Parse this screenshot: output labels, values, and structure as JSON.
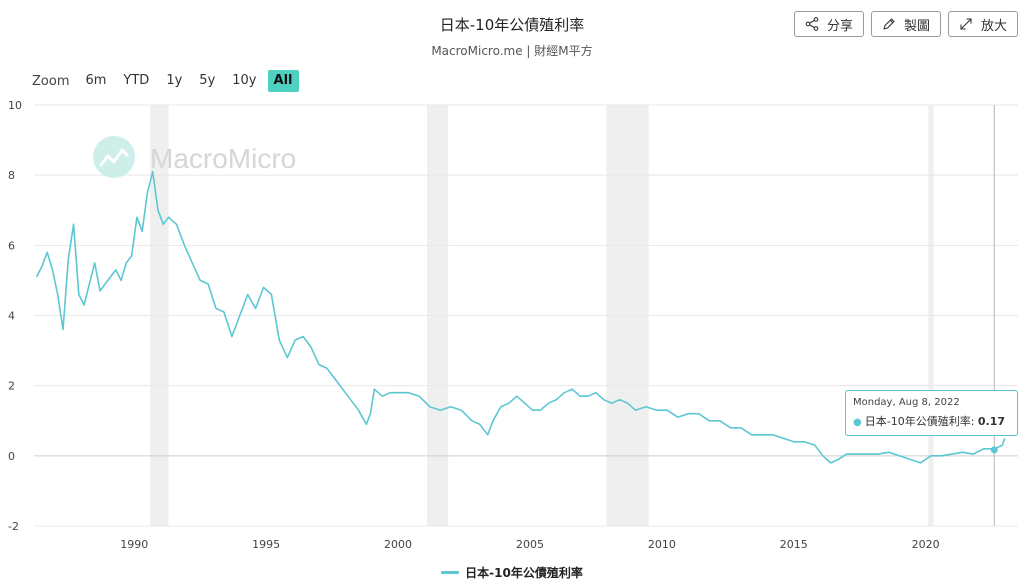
{
  "header": {
    "title": "日本-10年公債殖利率",
    "subtitle": "MacroMicro.me | 財經M平方"
  },
  "buttons": {
    "share": "分享",
    "draw": "製圖",
    "expand": "放大"
  },
  "zoom": {
    "label": "Zoom",
    "options": [
      "6m",
      "YTD",
      "1y",
      "5y",
      "10y",
      "All"
    ],
    "active": "All"
  },
  "watermark": "MacroMicro",
  "tooltip": {
    "date": "Monday, Aug 8, 2022",
    "series": "日本-10年公債殖利率",
    "value": "0.17"
  },
  "colors": {
    "series": "#5cc7d2",
    "active_zoom": "#4fd1c2",
    "recession_band": "#efefef"
  },
  "chart_data": {
    "type": "line",
    "title": "日本-10年公債殖利率",
    "xlabel": "",
    "ylabel": "",
    "xlim": [
      1986.2,
      2023.5
    ],
    "ylim": [
      -2,
      10
    ],
    "yticks": [
      -2,
      0,
      2,
      4,
      6,
      8,
      10
    ],
    "xticks": [
      1990,
      1995,
      2000,
      2005,
      2010,
      2015,
      2020
    ],
    "grid": true,
    "legend": "bottom",
    "recession_bands": [
      [
        1990.6,
        1991.3
      ],
      [
        2001.1,
        2001.9
      ],
      [
        2007.9,
        2009.5
      ],
      [
        2020.1,
        2020.3
      ]
    ],
    "crosshair_x": 2022.6,
    "series": [
      {
        "name": "日本-10年公債殖利率",
        "x": [
          1986.3,
          1986.5,
          1986.7,
          1986.9,
          1987.1,
          1987.3,
          1987.5,
          1987.7,
          1987.9,
          1988.1,
          1988.3,
          1988.5,
          1988.7,
          1988.9,
          1989.1,
          1989.3,
          1989.5,
          1989.7,
          1989.9,
          1990.1,
          1990.3,
          1990.5,
          1990.7,
          1990.9,
          1991.1,
          1991.3,
          1991.6,
          1991.9,
          1992.2,
          1992.5,
          1992.8,
          1993.1,
          1993.4,
          1993.7,
          1994.0,
          1994.3,
          1994.6,
          1994.9,
          1995.2,
          1995.5,
          1995.8,
          1996.1,
          1996.4,
          1996.7,
          1997.0,
          1997.3,
          1997.6,
          1997.9,
          1998.2,
          1998.5,
          1998.8,
          1998.95,
          1999.1,
          1999.4,
          1999.7,
          2000.0,
          2000.4,
          2000.8,
          2001.2,
          2001.6,
          2002.0,
          2002.4,
          2002.8,
          2003.1,
          2003.4,
          2003.6,
          2003.9,
          2004.2,
          2004.5,
          2004.8,
          2005.1,
          2005.4,
          2005.7,
          2006.0,
          2006.3,
          2006.6,
          2006.9,
          2007.2,
          2007.5,
          2007.8,
          2008.1,
          2008.4,
          2008.7,
          2009.0,
          2009.4,
          2009.8,
          2010.2,
          2010.6,
          2011.0,
          2011.4,
          2011.8,
          2012.2,
          2012.6,
          2013.0,
          2013.4,
          2013.8,
          2014.2,
          2014.6,
          2015.0,
          2015.4,
          2015.8,
          2016.1,
          2016.4,
          2016.7,
          2017.0,
          2017.4,
          2017.8,
          2018.2,
          2018.6,
          2019.0,
          2019.4,
          2019.8,
          2020.2,
          2020.6,
          2021.0,
          2021.4,
          2021.8,
          2022.2,
          2022.6,
          2022.9,
          2023.0
        ],
        "y": [
          5.1,
          5.4,
          5.8,
          5.3,
          4.6,
          3.6,
          5.6,
          6.6,
          4.6,
          4.3,
          4.9,
          5.5,
          4.7,
          4.9,
          5.1,
          5.3,
          5.0,
          5.5,
          5.7,
          6.8,
          6.4,
          7.5,
          8.1,
          7.0,
          6.6,
          6.8,
          6.6,
          6.0,
          5.5,
          5.0,
          4.9,
          4.2,
          4.1,
          3.4,
          4.0,
          4.6,
          4.2,
          4.8,
          4.6,
          3.3,
          2.8,
          3.3,
          3.4,
          3.1,
          2.6,
          2.5,
          2.2,
          1.9,
          1.6,
          1.3,
          0.9,
          1.2,
          1.9,
          1.7,
          1.8,
          1.8,
          1.8,
          1.7,
          1.4,
          1.3,
          1.4,
          1.3,
          1.0,
          0.9,
          0.6,
          1.0,
          1.4,
          1.5,
          1.7,
          1.5,
          1.3,
          1.3,
          1.5,
          1.6,
          1.8,
          1.9,
          1.7,
          1.7,
          1.8,
          1.6,
          1.5,
          1.6,
          1.5,
          1.3,
          1.4,
          1.3,
          1.3,
          1.1,
          1.2,
          1.2,
          1.0,
          1.0,
          0.8,
          0.8,
          0.6,
          0.6,
          0.6,
          0.5,
          0.4,
          0.4,
          0.3,
          0.0,
          -0.2,
          -0.1,
          0.05,
          0.05,
          0.05,
          0.05,
          0.1,
          0.0,
          -0.1,
          -0.2,
          0.0,
          0.0,
          0.05,
          0.1,
          0.05,
          0.2,
          0.2,
          0.3,
          0.5
        ]
      }
    ]
  }
}
